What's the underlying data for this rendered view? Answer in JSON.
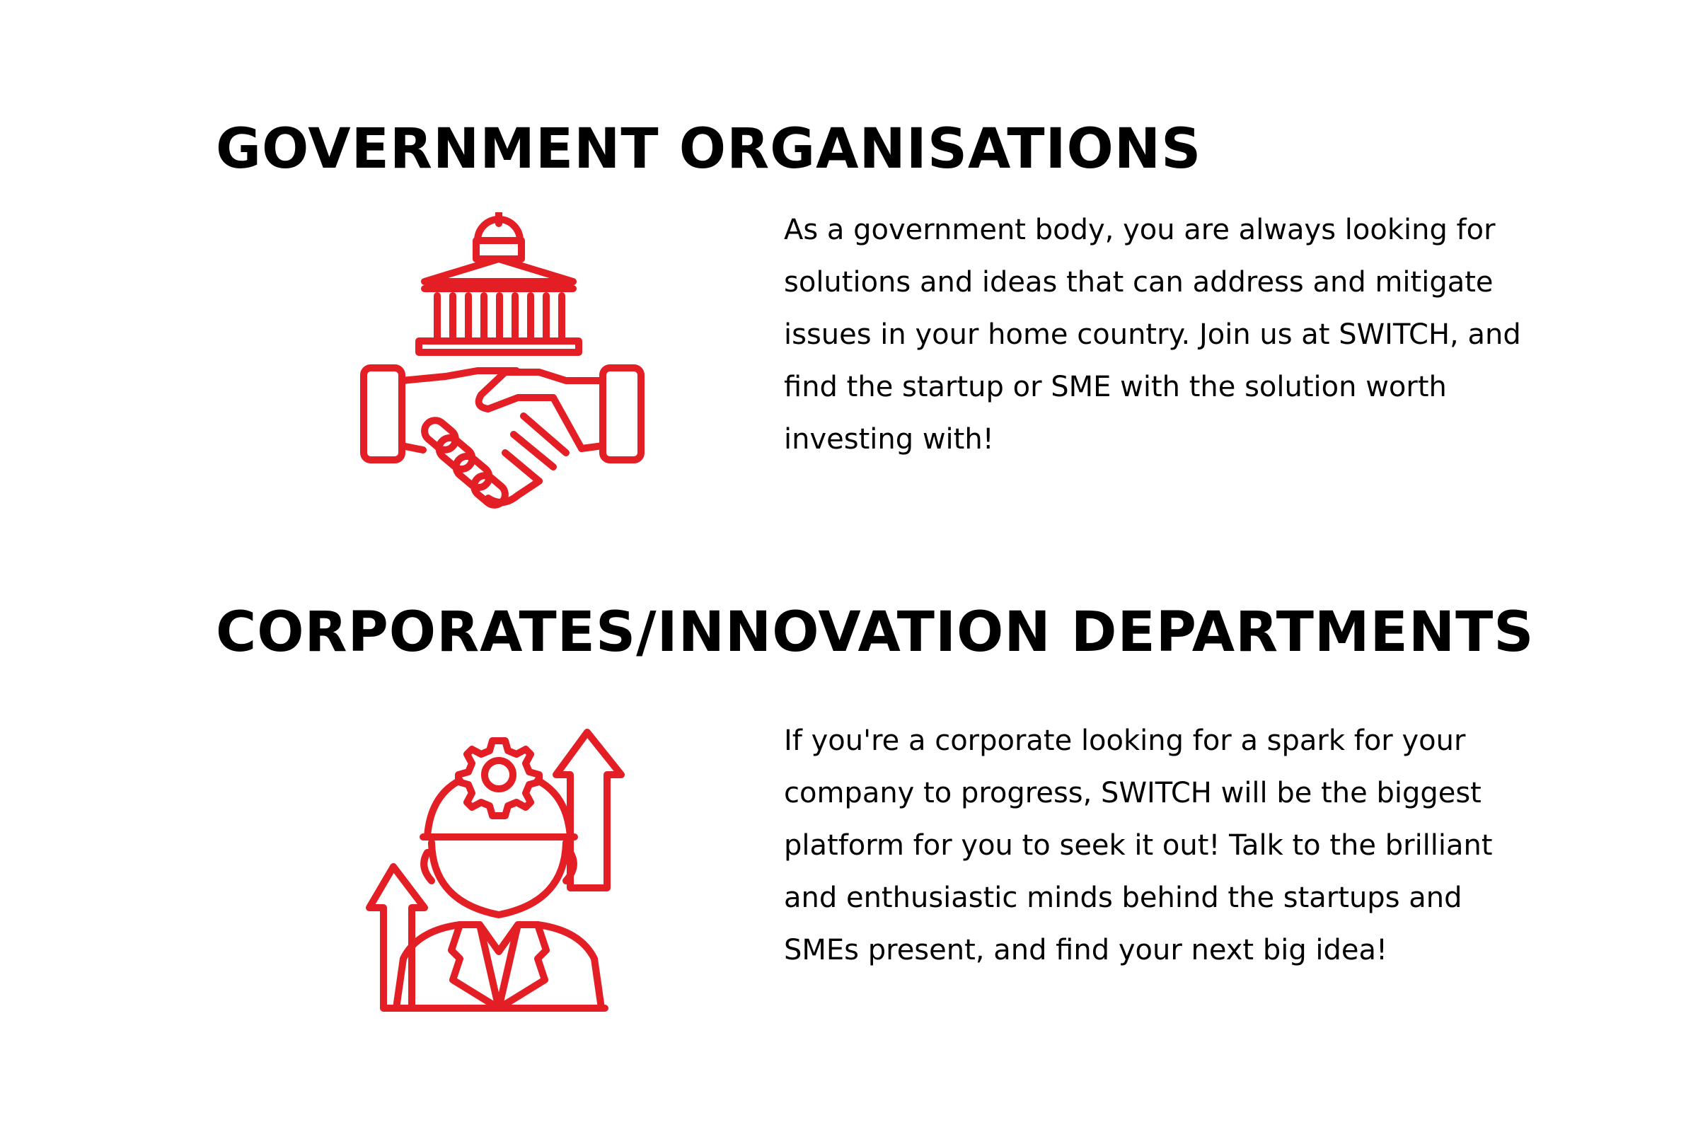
{
  "accent_color": "#e31e24",
  "sections": [
    {
      "title": "GOVERNMENT ORGANISATIONS",
      "icon": "government-handshake-icon",
      "text": "As a government body, you are always looking for solutions and ideas that can address and mitigate issues in your home country. Join us at SWITCH, and find the startup or SME with the solution worth investing with!"
    },
    {
      "title": "CORPORATES/INNOVATION DEPARTMENTS",
      "icon": "engineer-growth-icon",
      "text": "If you're a corporate looking for a spark for your company to progress, SWITCH will be the biggest platform for you to seek it out! Talk to the brilliant and enthusiastic minds behind the startups and SMEs present, and find your next big idea!"
    }
  ]
}
